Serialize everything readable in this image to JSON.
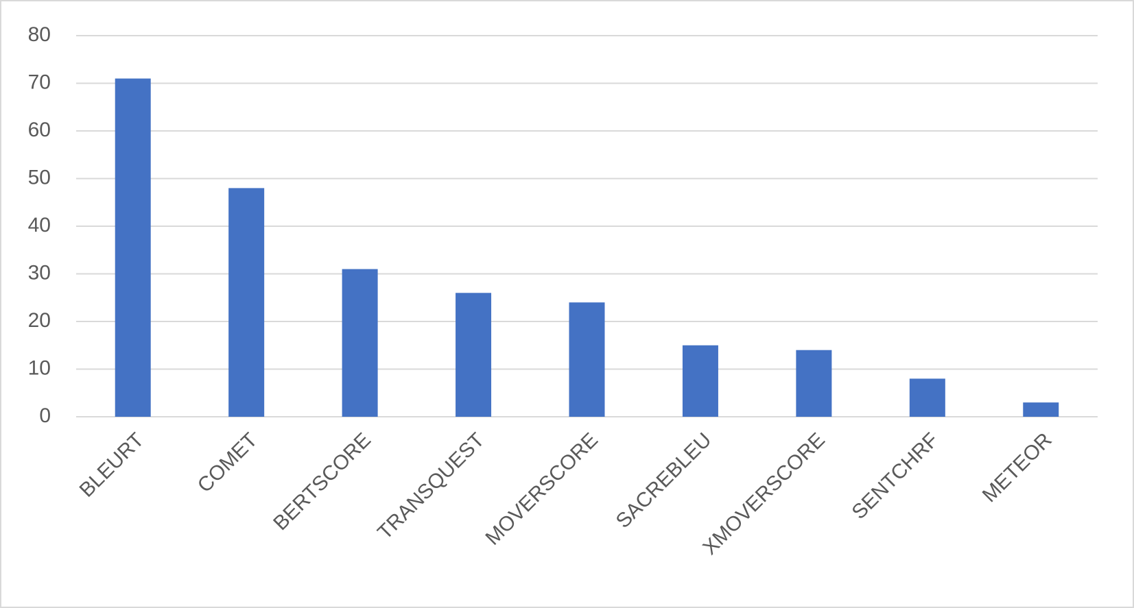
{
  "chart_data": {
    "type": "bar",
    "categories": [
      "BLEURT",
      "COMET",
      "BERTSCORE",
      "TRANSQUEST",
      "MOVERSCORE",
      "SACREBLEU",
      "XMOVERSCORE",
      "SENTCHRF",
      "METEOR"
    ],
    "values": [
      71,
      48,
      31,
      26,
      24,
      15,
      14,
      8,
      3
    ],
    "color": "#4472c4",
    "ylim": [
      0,
      80
    ],
    "yticks": [
      0,
      10,
      20,
      30,
      40,
      50,
      60,
      70,
      80
    ],
    "grid": true
  }
}
